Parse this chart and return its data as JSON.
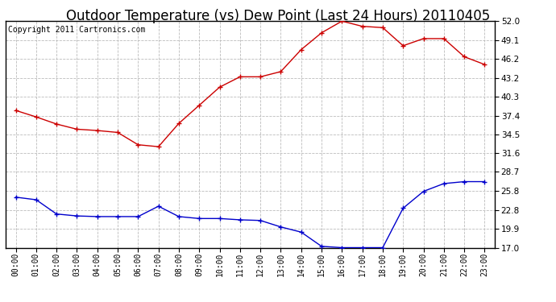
{
  "title": "Outdoor Temperature (vs) Dew Point (Last 24 Hours) 20110405",
  "copyright": "Copyright 2011 Cartronics.com",
  "hours": [
    "00:00",
    "01:00",
    "02:00",
    "03:00",
    "04:00",
    "05:00",
    "06:00",
    "07:00",
    "08:00",
    "09:00",
    "10:00",
    "11:00",
    "12:00",
    "13:00",
    "14:00",
    "15:00",
    "16:00",
    "17:00",
    "18:00",
    "19:00",
    "20:00",
    "21:00",
    "22:00",
    "23:00"
  ],
  "temp": [
    38.2,
    37.2,
    36.1,
    35.3,
    35.1,
    34.8,
    32.9,
    32.6,
    36.2,
    39.0,
    41.8,
    43.4,
    43.4,
    44.2,
    47.6,
    50.2,
    52.0,
    51.2,
    51.0,
    48.2,
    49.3,
    49.3,
    46.5,
    45.3
  ],
  "dew": [
    24.8,
    24.4,
    22.2,
    21.9,
    21.8,
    21.8,
    21.8,
    23.4,
    21.8,
    21.5,
    21.5,
    21.3,
    21.2,
    20.2,
    19.4,
    17.2,
    17.0,
    17.0,
    17.0,
    23.1,
    25.7,
    26.9,
    27.2,
    27.2
  ],
  "temp_color": "#cc0000",
  "dew_color": "#0000cc",
  "background_color": "#ffffff",
  "plot_bg_color": "#ffffff",
  "grid_color": "#bbbbbb",
  "yticks": [
    17.0,
    19.9,
    22.8,
    25.8,
    28.7,
    31.6,
    34.5,
    37.4,
    40.3,
    43.2,
    46.2,
    49.1,
    52.0
  ],
  "title_fontsize": 12,
  "copyright_fontsize": 7
}
